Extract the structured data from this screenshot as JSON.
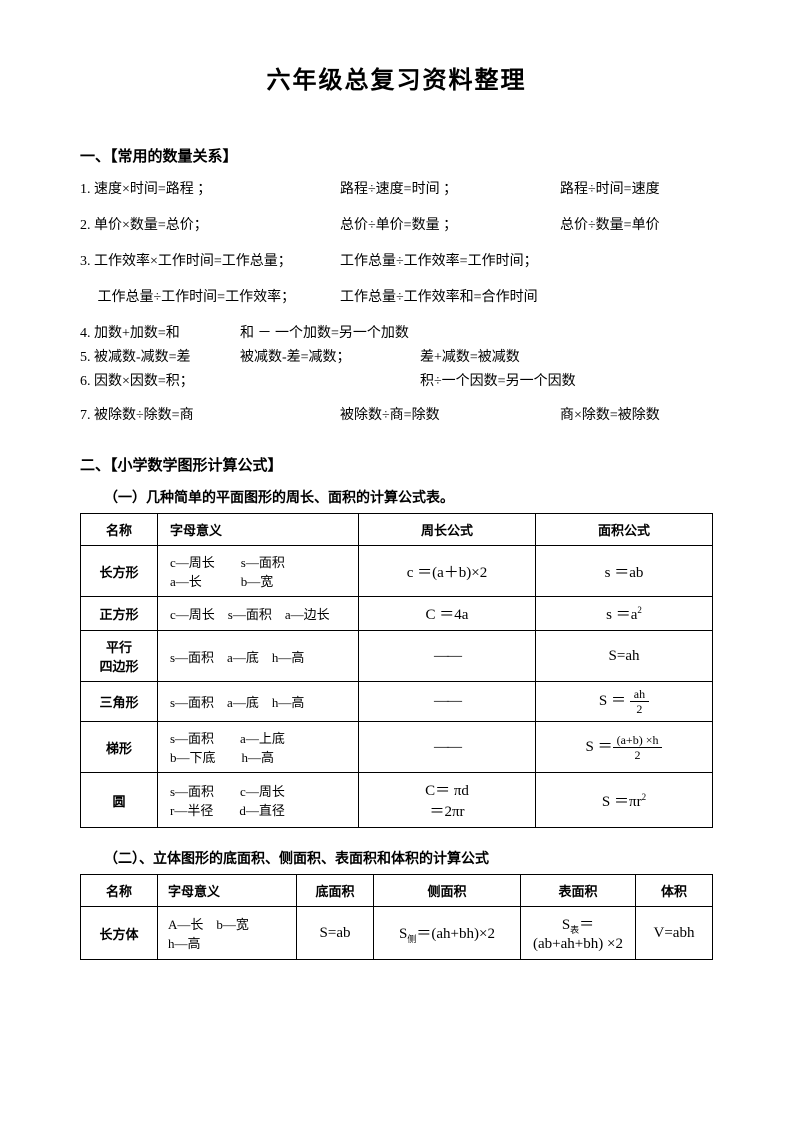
{
  "title": "六年级总复习资料整理",
  "section1": {
    "header": "一、【常用的数量关系】",
    "item1": {
      "a": "1. 速度×时间=路程 ；",
      "b": "路程÷速度=时间 ；",
      "c": "路程÷时间=速度"
    },
    "item2": {
      "a": "2. 单价×数量=总价；",
      "b": "总价÷单价=数量 ；",
      "c": "总价÷数量=单价"
    },
    "item3": {
      "a": "3. 工作效率×工作时间=工作总量；",
      "b": "工作总量÷工作效率=工作时间；"
    },
    "item3b": {
      "a": "　 工作总量÷工作时间=工作效率；",
      "b": "工作总量÷工作效率和=合作时间"
    },
    "item4": {
      "a": "4. 加数+加数=和",
      "b": "和 － 一个加数=另一个加数",
      "c": ""
    },
    "item5": {
      "a": "5. 被减数-减数=差",
      "b": "被减数-差=减数；",
      "c": "差+减数=被减数"
    },
    "item6": {
      "a": "6. 因数×因数=积；",
      "b": "",
      "c": "积÷一个因数=另一个因数"
    },
    "item7": {
      "a": "7. 被除数÷除数=商",
      "b": "被除数÷商=除数",
      "c": "商×除数=被除数"
    }
  },
  "section2": {
    "header": "二、【小学数学图形计算公式】",
    "sub1": "（一）几种简单的平面图形的周长、面积的计算公式表。",
    "table1": {
      "headers": [
        "名称",
        "字母意义",
        "周长公式",
        "面积公式"
      ],
      "rows": [
        {
          "name": "长方形",
          "meaning": "c—周长　　s—面积<br>a—长　　　b—宽",
          "perim": "c ＝(a＋b)×2",
          "area": "s ＝ab"
        },
        {
          "name": "正方形",
          "meaning": "c—周长　s—面积　a—边长",
          "perim": "C ＝4a",
          "area": "s ＝a<sup>2</sup>"
        },
        {
          "name": "平行<br>四边形",
          "meaning": "s—面积　a—底　h—高",
          "perim": "——",
          "area": "S=ah"
        },
        {
          "name": "三角形",
          "meaning": "s—面积　a—底　h—高",
          "perim": "——",
          "area_frac": {
            "num": "ah",
            "den": "2",
            "prefix": "S ＝ "
          }
        },
        {
          "name": "梯形",
          "meaning": "s—面积　　a—上底<br>b—下底　　h—高",
          "perim": "——",
          "area_frac": {
            "num": "(a+b) ×h",
            "den": "2",
            "prefix": "S ＝"
          }
        },
        {
          "name": "圆",
          "meaning": "s—面积　　c—周长<br>r—半径　　d—直径",
          "perim": "C＝ πd<br>＝2πr",
          "area": "S ＝πr<sup>2</sup>"
        }
      ]
    },
    "sub2": "（二）、立体图形的底面积、侧面积、表面积和体积的计算公式",
    "table2": {
      "headers": [
        "名称",
        "字母意义",
        "底面积",
        "侧面积",
        "表面积",
        "体积"
      ],
      "rows": [
        {
          "name": "长方体",
          "meaning": "A—长　b—宽<br>h—高",
          "base": "S=ab",
          "side": "S<sub>侧</sub>＝(ah+bh)×2",
          "surf": "S<sub>表</sub>＝(ab+ah+bh) ×2",
          "vol": "V=abh"
        }
      ]
    }
  }
}
